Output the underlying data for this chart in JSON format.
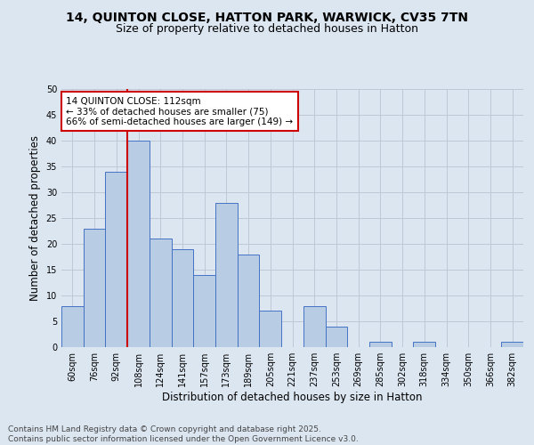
{
  "title_line1": "14, QUINTON CLOSE, HATTON PARK, WARWICK, CV35 7TN",
  "title_line2": "Size of property relative to detached houses in Hatton",
  "xlabel": "Distribution of detached houses by size in Hatton",
  "ylabel": "Number of detached properties",
  "bar_labels": [
    "60sqm",
    "76sqm",
    "92sqm",
    "108sqm",
    "124sqm",
    "141sqm",
    "157sqm",
    "173sqm",
    "189sqm",
    "205sqm",
    "221sqm",
    "237sqm",
    "253sqm",
    "269sqm",
    "285sqm",
    "302sqm",
    "318sqm",
    "334sqm",
    "350sqm",
    "366sqm",
    "382sqm"
  ],
  "bar_values": [
    8,
    23,
    34,
    40,
    21,
    19,
    14,
    28,
    18,
    7,
    0,
    8,
    4,
    0,
    1,
    0,
    1,
    0,
    0,
    0,
    1
  ],
  "bar_color": "#b8cce4",
  "bar_edge_color": "#4472c4",
  "vline_index": 3,
  "annotation_text": "14 QUINTON CLOSE: 112sqm\n← 33% of detached houses are smaller (75)\n66% of semi-detached houses are larger (149) →",
  "annotation_box_color": "#ffffff",
  "annotation_box_edge": "#cc0000",
  "vline_color": "#cc0000",
  "grid_color": "#c0c8d8",
  "background_color": "#dce6f1",
  "plot_bg_color": "#dce6f1",
  "ylim": [
    0,
    50
  ],
  "yticks": [
    0,
    5,
    10,
    15,
    20,
    25,
    30,
    35,
    40,
    45,
    50
  ],
  "footer_text": "Contains HM Land Registry data © Crown copyright and database right 2025.\nContains public sector information licensed under the Open Government Licence v3.0.",
  "title_fontsize": 10,
  "subtitle_fontsize": 9,
  "axis_label_fontsize": 8.5,
  "tick_fontsize": 7,
  "annotation_fontsize": 7.5,
  "footer_fontsize": 6.5
}
